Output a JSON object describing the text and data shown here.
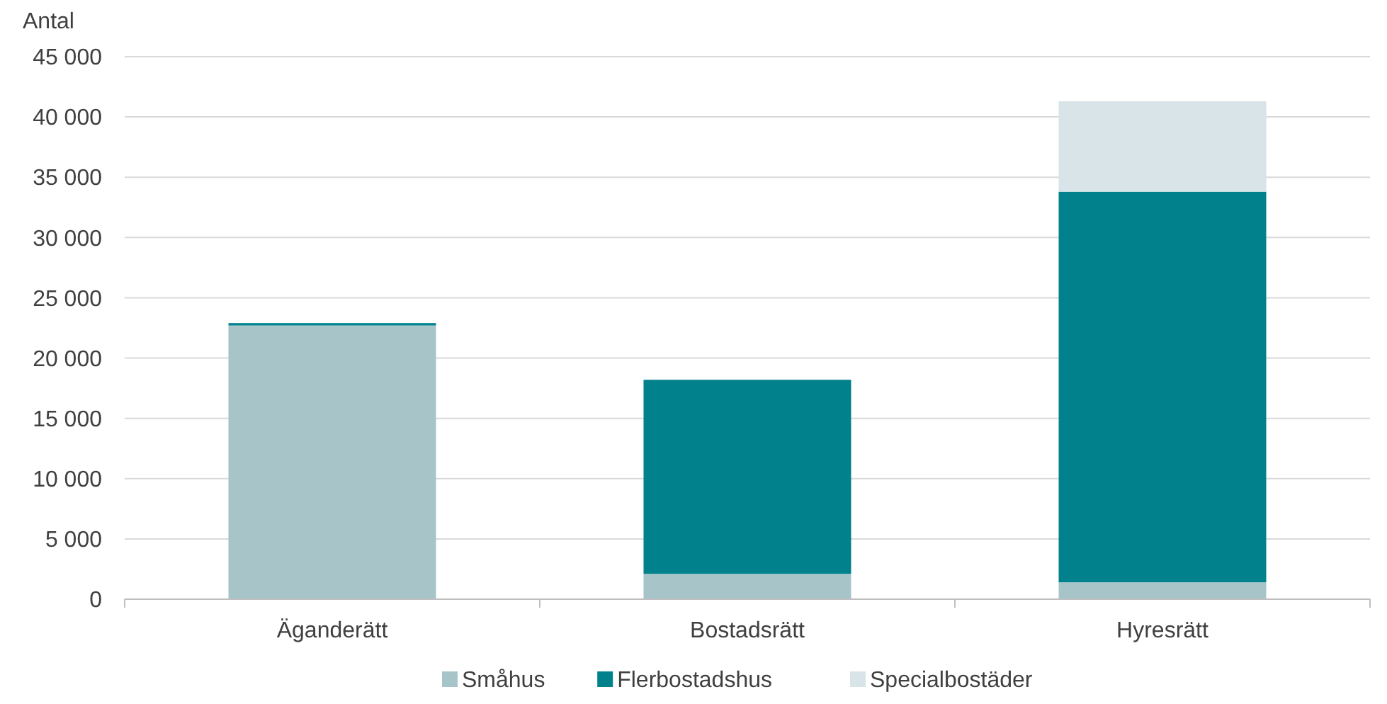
{
  "chart_data": {
    "type": "bar",
    "ylabel": "Antal",
    "stacked": true,
    "categories": [
      "Äganderätt",
      "Bostadsrätt",
      "Hyresrätt"
    ],
    "series": [
      {
        "name": "Småhus",
        "color": "#a7c4c9",
        "values": [
          22700,
          2100,
          1400
        ]
      },
      {
        "name": "Flerbostadshus",
        "color": "#00818c",
        "values": [
          200,
          16100,
          32400
        ]
      },
      {
        "name": "Specialbostäder",
        "color": "#d9e4e8",
        "values": [
          0,
          0,
          7500
        ]
      }
    ],
    "ylim": [
      0,
      45000
    ],
    "yticks": [
      0,
      {
        "value": 5000,
        "label": "5 000"
      },
      {
        "value": 10000,
        "label": "10 000"
      },
      {
        "value": 15000,
        "label": "15 000"
      },
      {
        "value": 20000,
        "label": "20 000"
      },
      {
        "value": 25000,
        "label": "25 000"
      },
      {
        "value": 30000,
        "label": "30 000"
      },
      {
        "value": 35000,
        "label": "35 000"
      },
      {
        "value": 40000,
        "label": "40 000"
      },
      {
        "value": 45000,
        "label": "45 000"
      }
    ],
    "grid": "y",
    "legend": "bottom"
  }
}
